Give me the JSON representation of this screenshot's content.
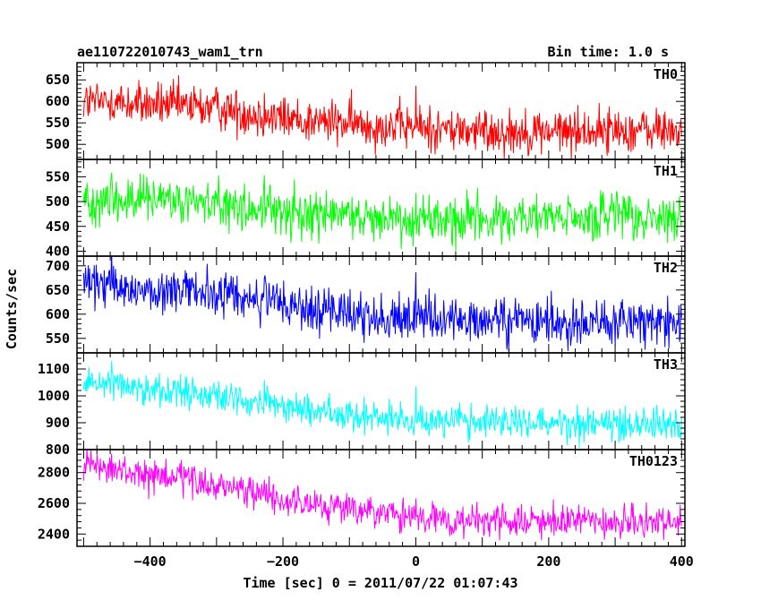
{
  "chart_data": {
    "type": "line",
    "title": "ae110722010743_wam1_trn",
    "bin_time_label": "Bin time: 1.0 s",
    "xlabel": "Time [sec] 0 = 2011/07/22 01:07:43",
    "ylabel": "Counts/sec",
    "xlim": [
      -510,
      405
    ],
    "x_ticks": [
      -400,
      -200,
      0,
      200,
      400
    ],
    "x_step": 1,
    "event_times": [
      -458,
      -228,
      0
    ],
    "panels": [
      {
        "name": "TH0",
        "color": "#ff0000",
        "ylim": [
          465,
          690
        ],
        "y_ticks": [
          500,
          550,
          600,
          650
        ],
        "level_x": [
          -500,
          -300,
          -200,
          -100,
          0,
          100,
          200,
          300,
          400
        ],
        "level_y": [
          600,
          585,
          560,
          548,
          540,
          530,
          530,
          533,
          532
        ],
        "noise": 30
      },
      {
        "name": "TH1",
        "color": "#00ff00",
        "ylim": [
          390,
          585
        ],
        "y_ticks": [
          400,
          450,
          500,
          550
        ],
        "level_x": [
          -500,
          -300,
          -200,
          -100,
          0,
          100,
          200,
          300,
          400
        ],
        "level_y": [
          505,
          495,
          478,
          472,
          466,
          463,
          466,
          468,
          462
        ],
        "noise": 28
      },
      {
        "name": "TH2",
        "color": "#0000ff",
        "ylim": [
          520,
          720
        ],
        "y_ticks": [
          550,
          600,
          650,
          700
        ],
        "level_x": [
          -500,
          -300,
          -200,
          -100,
          0,
          100,
          200,
          300,
          400
        ],
        "level_y": [
          660,
          642,
          620,
          600,
          590,
          585,
          582,
          585,
          582
        ],
        "noise": 28
      },
      {
        "name": "TH3",
        "color": "#00ffff",
        "ylim": [
          800,
          1160
        ],
        "y_ticks": [
          800,
          900,
          1000,
          1100
        ],
        "level_x": [
          -500,
          -300,
          -200,
          -100,
          0,
          100,
          200,
          300,
          400
        ],
        "level_y": [
          1060,
          1000,
          960,
          930,
          910,
          905,
          900,
          900,
          895
        ],
        "noise": 35
      },
      {
        "name": "TH0123",
        "color": "#ff00ff",
        "ylim": [
          2320,
          2950
        ],
        "y_ticks": [
          2400,
          2600,
          2800
        ],
        "level_x": [
          -500,
          -300,
          -200,
          -100,
          0,
          100,
          200,
          300,
          400
        ],
        "level_y": [
          2840,
          2720,
          2620,
          2560,
          2500,
          2480,
          2480,
          2475,
          2470
        ],
        "noise": 60
      }
    ]
  }
}
